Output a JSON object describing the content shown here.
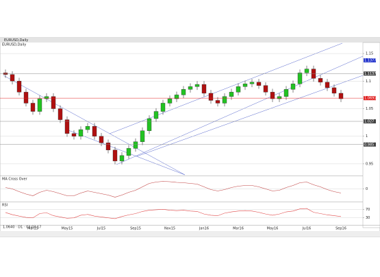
{
  "header": "EURUSD,Daily",
  "status": "1.0640 · D1 · 03.03.17",
  "chart_data": [
    {
      "type": "candlestick",
      "title": "EURUSD,Daily",
      "categories": [
        null,
        null,
        null,
        null,
        "Mar15",
        null,
        null,
        null,
        null,
        "May15",
        null,
        null,
        null,
        null,
        "Jul15",
        null,
        null,
        null,
        null,
        "Sep15",
        null,
        null,
        null,
        null,
        "Nov15",
        null,
        null,
        null,
        null,
        "Jan16",
        null,
        null,
        null,
        null,
        "Mar16",
        null,
        null,
        null,
        null,
        "May16",
        null,
        null,
        null,
        null,
        "Jul16",
        null,
        null,
        null,
        null,
        "Sep16"
      ],
      "open": [
        1.115,
        1.112,
        1.1,
        1.08,
        1.06,
        1.045,
        1.068,
        1.072,
        1.05,
        1.03,
        1.005,
        1.0,
        1.012,
        1.018,
        1.0,
        0.988,
        0.975,
        0.955,
        0.965,
        0.978,
        0.99,
        1.01,
        1.032,
        1.045,
        1.06,
        1.068,
        1.075,
        1.085,
        1.09,
        1.094,
        1.078,
        1.065,
        1.06,
        1.072,
        1.08,
        1.09,
        1.095,
        1.098,
        1.092,
        1.08,
        1.068,
        1.072,
        1.085,
        1.095,
        1.115,
        1.122,
        1.105,
        1.098,
        1.088,
        1.078
      ],
      "high": [
        1.121,
        1.118,
        1.106,
        1.086,
        1.066,
        1.074,
        1.078,
        1.078,
        1.056,
        1.036,
        1.011,
        1.018,
        1.024,
        1.024,
        1.006,
        0.994,
        0.981,
        0.971,
        0.984,
        0.996,
        1.016,
        1.038,
        1.051,
        1.066,
        1.074,
        1.081,
        1.091,
        1.096,
        1.1,
        1.1,
        1.084,
        1.071,
        1.078,
        1.086,
        1.096,
        1.101,
        1.104,
        1.104,
        1.098,
        1.086,
        1.078,
        1.091,
        1.101,
        1.121,
        1.128,
        1.128,
        1.111,
        1.104,
        1.094,
        1.084
      ],
      "low": [
        1.106,
        1.094,
        1.074,
        1.054,
        1.039,
        1.039,
        1.062,
        1.044,
        1.024,
        0.999,
        0.994,
        0.994,
        1.006,
        0.994,
        0.982,
        0.969,
        0.949,
        0.949,
        0.959,
        0.972,
        0.984,
        1.004,
        1.026,
        1.039,
        1.054,
        1.062,
        1.069,
        1.079,
        1.084,
        1.072,
        1.059,
        1.054,
        1.054,
        1.066,
        1.074,
        1.084,
        1.089,
        1.086,
        1.074,
        1.062,
        1.062,
        1.066,
        1.079,
        1.089,
        1.109,
        1.099,
        1.092,
        1.082,
        1.072,
        1.062
      ],
      "close": [
        1.112,
        1.1,
        1.08,
        1.06,
        1.045,
        1.068,
        1.072,
        1.05,
        1.03,
        1.005,
        1.0,
        1.012,
        1.018,
        1.0,
        0.988,
        0.975,
        0.955,
        0.965,
        0.978,
        0.99,
        1.01,
        1.032,
        1.045,
        1.06,
        1.068,
        1.075,
        1.085,
        1.09,
        1.094,
        1.078,
        1.065,
        1.06,
        1.072,
        1.08,
        1.09,
        1.095,
        1.098,
        1.092,
        1.08,
        1.068,
        1.072,
        1.085,
        1.095,
        1.115,
        1.122,
        1.105,
        1.098,
        1.088,
        1.078,
        1.068
      ],
      "color_up": "#22c322",
      "color_down": "#b01010",
      "ylim": [
        0.93,
        1.17
      ],
      "yticks": [
        0.95,
        1,
        1.05,
        1.1,
        1.15
      ],
      "levels": [
        1.1377,
        1.1137,
        1.0691,
        1.027,
        0.985
      ],
      "level_colors": [
        "#2233cc",
        "#444444",
        "#e02020",
        "#444444",
        "#444444"
      ]
    },
    {
      "type": "line",
      "title": "MA Cross Over",
      "color": "#c04040",
      "values": [
        0.004,
        0.0,
        -0.008,
        -0.015,
        -0.02,
        -0.01,
        -0.004,
        -0.008,
        -0.014,
        -0.02,
        -0.02,
        -0.012,
        -0.006,
        -0.01,
        -0.014,
        -0.018,
        -0.024,
        -0.018,
        -0.01,
        -0.004,
        0.006,
        0.016,
        0.02,
        0.022,
        0.021,
        0.019,
        0.018,
        0.016,
        0.014,
        0.006,
        -0.002,
        -0.006,
        -0.002,
        0.004,
        0.008,
        0.01,
        0.01,
        0.006,
        0.0,
        -0.006,
        -0.004,
        0.004,
        0.01,
        0.018,
        0.02,
        0.012,
        0.006,
        -0.002,
        -0.008,
        -0.012
      ],
      "ylim": [
        -0.035,
        0.035
      ],
      "yticks": [
        0
      ]
    },
    {
      "type": "line",
      "title": "RSI",
      "color": "#e04848",
      "values": [
        55,
        45,
        38,
        32,
        30,
        50,
        54,
        40,
        34,
        28,
        30,
        42,
        46,
        38,
        34,
        30,
        26,
        36,
        44,
        50,
        60,
        66,
        68,
        70,
        66,
        64,
        66,
        62,
        60,
        48,
        42,
        40,
        52,
        58,
        62,
        64,
        62,
        56,
        48,
        42,
        48,
        58,
        62,
        72,
        74,
        56,
        50,
        44,
        40,
        36
      ],
      "ylim": [
        0,
        100
      ],
      "yticks": [
        30,
        70
      ]
    }
  ]
}
